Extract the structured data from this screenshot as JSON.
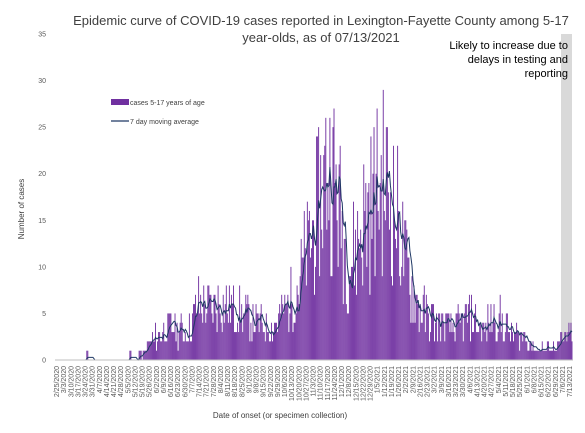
{
  "chart_data": {
    "type": "bar",
    "title_lines": [
      "Epidemic curve of COVID-19 cases reported in Lexington-Fayette County among 5-17",
      "year-olds, as of 07/13/2021"
    ],
    "xlabel": "Date of onset (or specimen collection)",
    "ylabel": "Number of cases",
    "ylim": [
      0,
      35
    ],
    "yticks": [
      0,
      5,
      10,
      15,
      20,
      25,
      30,
      35
    ],
    "x_range": [
      "2/25/2020",
      "7/13/2021"
    ],
    "x_tick_labels": [
      "2/25/2020",
      "3/3/2020",
      "3/10/2020",
      "3/17/2020",
      "3/24/2020",
      "3/31/2020",
      "4/7/2020",
      "4/14/2020",
      "4/21/2020",
      "4/28/2020",
      "5/5/2020",
      "5/12/2020",
      "5/19/2020",
      "5/26/2020",
      "6/2/2020",
      "6/9/2020",
      "6/16/2020",
      "6/23/2020",
      "6/30/2020",
      "7/7/2020",
      "7/14/2020",
      "7/21/2020",
      "7/28/2020",
      "8/4/2020",
      "8/11/2020",
      "8/18/2020",
      "8/25/2020",
      "9/1/2020",
      "9/8/2020",
      "9/15/2020",
      "9/22/2020",
      "9/29/2020",
      "10/6/2020",
      "10/13/2020",
      "10/20/2020",
      "10/27/2020",
      "11/3/2020",
      "11/10/2020",
      "11/17/2020",
      "11/24/2020",
      "12/1/2020",
      "12/8/2020",
      "12/15/2020",
      "12/22/2020",
      "12/29/2020",
      "1/5/2021",
      "1/12/2021",
      "1/19/2021",
      "1/26/2021",
      "2/2/2021",
      "2/9/2021",
      "2/16/2021",
      "2/23/2021",
      "3/2/2021",
      "3/9/2021",
      "3/16/2021",
      "3/23/2021",
      "3/30/2021",
      "4/6/2021",
      "4/13/2021",
      "4/20/2021",
      "4/27/2021",
      "5/4/2021",
      "5/11/2021",
      "5/18/2021",
      "5/25/2021",
      "6/1/2021",
      "6/8/2021",
      "6/15/2021",
      "6/22/2021",
      "6/29/2021",
      "7/6/2021",
      "7/13/2021"
    ],
    "series": [
      {
        "name": "cases 5-17 years of age",
        "kind": "bar",
        "color": "#7030a0",
        "weekly_daily_mean": [
          0,
          0,
          0,
          0.3,
          0,
          0.3,
          0,
          0.2,
          0,
          0,
          0,
          0.3,
          0.6,
          1.7,
          2.4,
          3,
          3.3,
          3.2,
          3,
          3.8,
          6.2,
          5.8,
          5.2,
          6.2,
          5.8,
          5.3,
          5.1,
          4.6,
          4,
          3.6,
          3.6,
          4.3,
          5.4,
          6.6,
          8.6,
          11.2,
          13.8,
          17.4,
          21,
          19,
          14.2,
          10.6,
          12.4,
          15.2,
          16.5,
          18.6,
          19.4,
          17,
          14.4,
          9.6,
          7,
          5.4,
          4.6,
          4,
          3.8,
          3.6,
          3.6,
          4.3,
          4.7,
          3.4,
          3.4,
          4.8,
          4.4,
          3.2,
          2.6,
          2.6,
          2,
          1.2,
          1.2,
          1.4,
          1.6,
          2.4,
          3.2
        ]
      },
      {
        "name": "7 day moving average",
        "kind": "line",
        "color": "#1f3864"
      }
    ],
    "annotation": [
      "Likely to increase due to",
      "delays in testing and",
      "reporting"
    ],
    "shaded_region": {
      "from": "7/4/2021",
      "to": "7/13/2021",
      "color": "#d9d9d9"
    },
    "legend_position": "upper-left",
    "grid": false
  }
}
